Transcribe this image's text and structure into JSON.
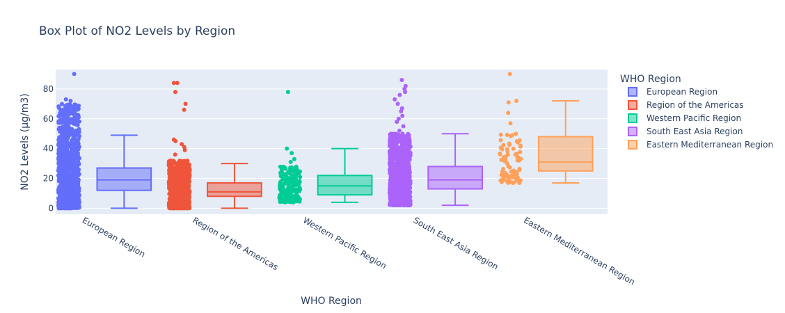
{
  "chart_data": {
    "type": "box",
    "title": "Box Plot of NO2 Levels by Region",
    "xlabel": "WHO Region",
    "ylabel": "NO2 Levels (μg/m3)",
    "ylim": [
      -4,
      93
    ],
    "yticks": [
      0,
      20,
      40,
      60,
      80
    ],
    "grid": true,
    "points": "all",
    "legend_title": "WHO Region",
    "legend_position": "right",
    "categories": [
      "European Region",
      "Region of the Americas",
      "Western Pacific Region",
      "South East Asia Region",
      "Eastern Mediterranean Region"
    ],
    "series": [
      {
        "name": "European Region",
        "color": "#636efa",
        "fill": "rgba(99,110,250,0.5)",
        "min": 0,
        "q1": 12,
        "median": 19,
        "q3": 27,
        "max": 49,
        "points_range": [
          0,
          70
        ],
        "point_density": 1.0,
        "outliers": [
          72,
          73,
          90
        ]
      },
      {
        "name": "Region of the Americas",
        "color": "#ef553b",
        "fill": "rgba(239,85,59,0.5)",
        "min": 0,
        "q1": 8,
        "median": 11,
        "q3": 17,
        "max": 30,
        "points_range": [
          0,
          32
        ],
        "point_density": 0.8,
        "outliers": [
          36,
          39,
          41,
          43,
          45,
          46,
          66,
          70,
          78,
          84,
          84
        ]
      },
      {
        "name": "Western Pacific Region",
        "color": "#00cc96",
        "fill": "rgba(0,204,150,0.5)",
        "min": 4,
        "q1": 9,
        "median": 15,
        "q3": 22,
        "max": 40,
        "points_range": [
          4,
          28
        ],
        "point_density": 0.2,
        "outliers": [
          31,
          33,
          37,
          40,
          78
        ]
      },
      {
        "name": "South East Asia Region",
        "color": "#ab63fa",
        "fill": "rgba(171,99,250,0.5)",
        "min": 2,
        "q1": 13,
        "median": 19,
        "q3": 28,
        "max": 50,
        "points_range": [
          2,
          50
        ],
        "point_density": 0.9,
        "outliers": [
          52,
          55,
          58,
          60,
          62,
          65,
          67,
          70,
          73,
          76,
          78,
          80,
          82,
          86
        ]
      },
      {
        "name": "Eastern Mediterranean Region",
        "color": "#ffa15a",
        "fill": "rgba(255,161,90,0.5)",
        "min": 17,
        "q1": 25,
        "median": 31,
        "q3": 48,
        "max": 72,
        "points_range": [
          17,
          50
        ],
        "point_density": 0.1,
        "outliers": [
          57,
          64,
          71,
          72,
          90
        ]
      }
    ]
  }
}
